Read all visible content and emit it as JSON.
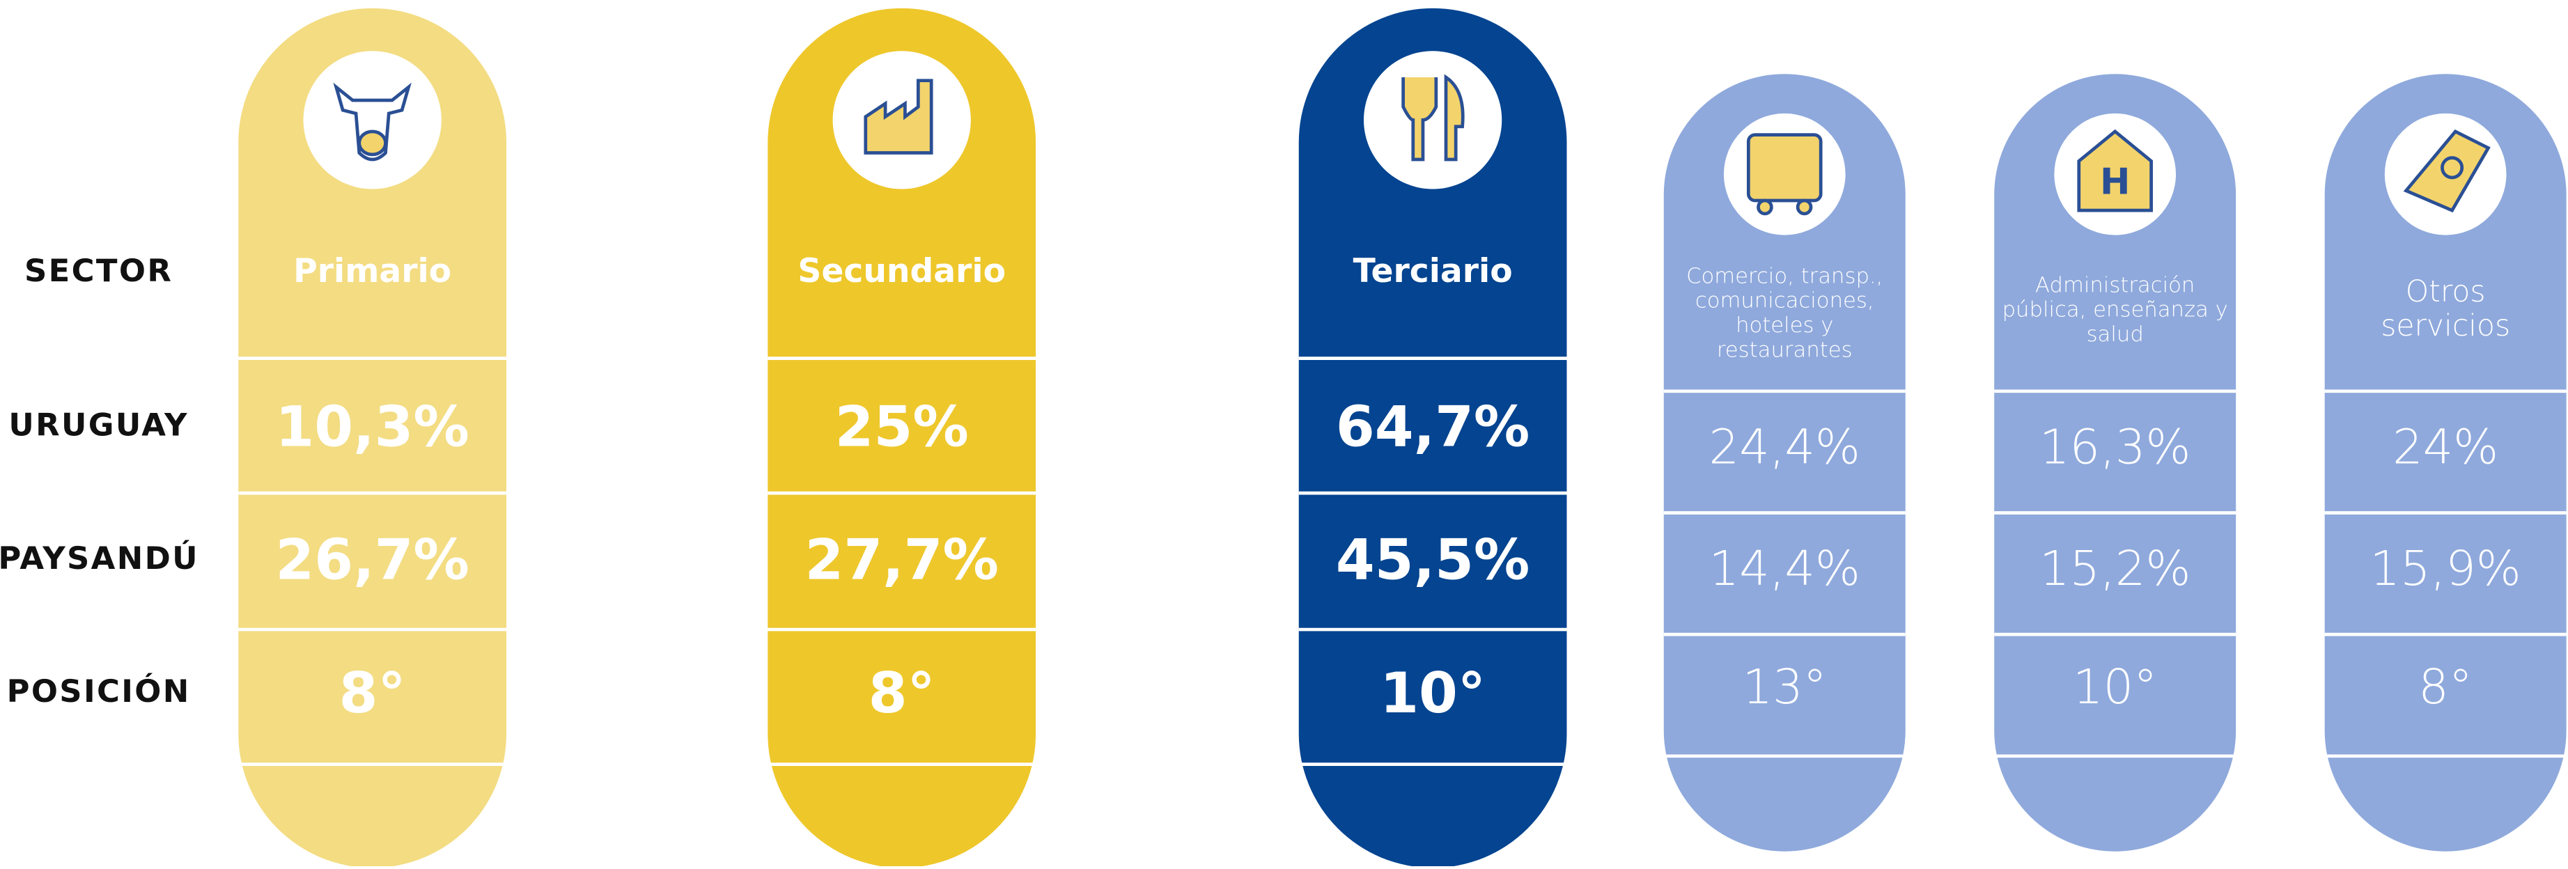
{
  "row_labels": [
    "SECTOR",
    "URUGUAY",
    "PAYSANDÚ",
    "POSICIÓN"
  ],
  "columns": [
    {
      "sector": [
        "Primario"
      ],
      "uruguay": "10,3%",
      "paysandu": "26,7%",
      "posicion": "8°"
    },
    {
      "sector": [
        "Secundario"
      ],
      "uruguay": "25%",
      "paysandu": "27,7%",
      "posicion": "8°"
    },
    {
      "sector": [
        "Terciario"
      ],
      "uruguay": "64,7%",
      "paysandu": "45,5%",
      "posicion": "10°"
    },
    {
      "sector": [
        "Comercio, transp.,",
        "comunicaciones,",
        "hoteles y",
        "restaurantes"
      ],
      "uruguay": "24,4%",
      "paysandu": "14,4%",
      "posicion": "13°"
    },
    {
      "sector": [
        "Administración",
        "pública, enseñanza y",
        "salud"
      ],
      "uruguay": "16,3%",
      "paysandu": "15,2%",
      "posicion": "10°"
    },
    {
      "sector": [
        "Otros",
        "servicios"
      ],
      "uruguay": "24%",
      "paysandu": "15,9%",
      "posicion": "8°"
    }
  ]
}
